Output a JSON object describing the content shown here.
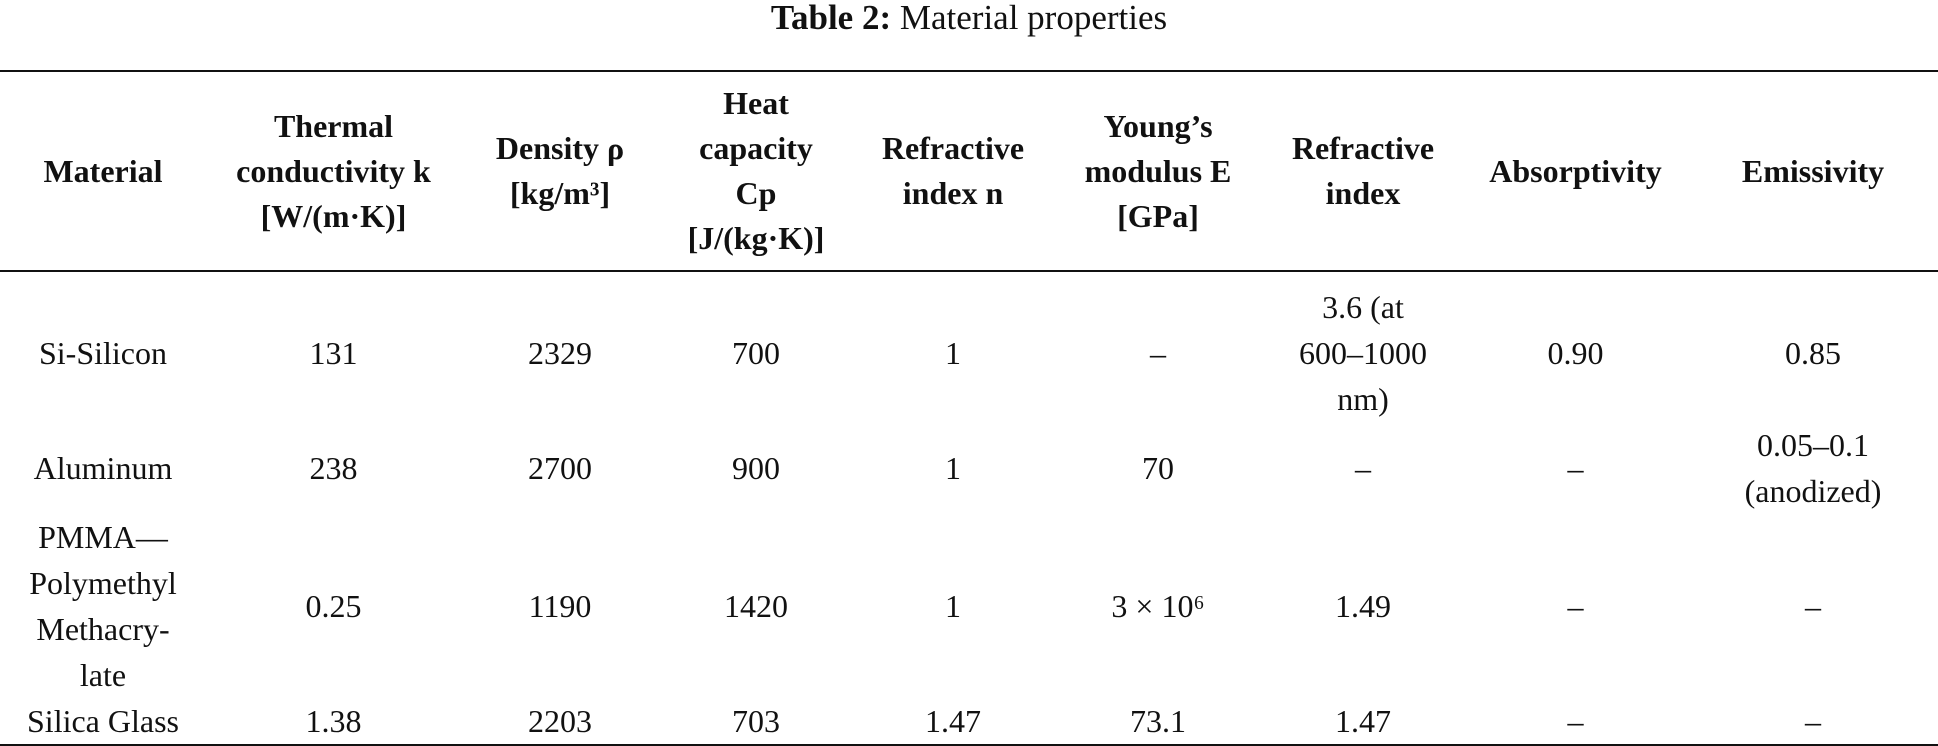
{
  "caption": {
    "label": "Table 2:",
    "text": " Material properties"
  },
  "table": {
    "headers": [
      {
        "lines": [
          "Material"
        ]
      },
      {
        "lines": [
          "Thermal",
          "conductivity k",
          "[W/(m·K)]"
        ]
      },
      {
        "lines": [
          "Density ρ",
          "[kg/m³]"
        ]
      },
      {
        "lines": [
          "Heat",
          "capacity",
          "Cp",
          "[J/(kg·K)]"
        ]
      },
      {
        "lines": [
          "Refractive",
          "index n"
        ]
      },
      {
        "lines": [
          "Young’s",
          "modulus E",
          "[GPa]"
        ]
      },
      {
        "lines": [
          "Refractive",
          "index"
        ]
      },
      {
        "lines": [
          "Absorptivity"
        ]
      },
      {
        "lines": [
          "Emissivity"
        ]
      }
    ],
    "rows": [
      {
        "cells": [
          {
            "lines": [
              "Si-Silicon"
            ]
          },
          {
            "lines": [
              "131"
            ]
          },
          {
            "lines": [
              "2329"
            ]
          },
          {
            "lines": [
              "700"
            ]
          },
          {
            "lines": [
              "1"
            ]
          },
          {
            "lines": [
              "–"
            ]
          },
          {
            "lines": [
              "3.6 (at",
              "600–1000",
              "nm)"
            ]
          },
          {
            "lines": [
              "0.90"
            ]
          },
          {
            "lines": [
              "0.85"
            ]
          }
        ]
      },
      {
        "cells": [
          {
            "lines": [
              "Aluminum"
            ]
          },
          {
            "lines": [
              "238"
            ]
          },
          {
            "lines": [
              "2700"
            ]
          },
          {
            "lines": [
              "900"
            ]
          },
          {
            "lines": [
              "1"
            ]
          },
          {
            "lines": [
              "70"
            ]
          },
          {
            "lines": [
              "–"
            ]
          },
          {
            "lines": [
              "–"
            ]
          },
          {
            "lines": [
              "0.05–0.1",
              "(anodized)"
            ]
          }
        ]
      },
      {
        "cells": [
          {
            "lines": [
              "PMMA—",
              "Polymethyl",
              "Methacry-",
              "late"
            ]
          },
          {
            "lines": [
              "0.25"
            ]
          },
          {
            "lines": [
              "1190"
            ]
          },
          {
            "lines": [
              "1420"
            ]
          },
          {
            "lines": [
              "1"
            ]
          },
          {
            "lines": [
              "3 × 10⁶"
            ]
          },
          {
            "lines": [
              "1.49"
            ]
          },
          {
            "lines": [
              "–"
            ]
          },
          {
            "lines": [
              "–"
            ]
          }
        ]
      },
      {
        "cells": [
          {
            "lines": [
              "Silica Glass"
            ]
          },
          {
            "lines": [
              "1.38"
            ]
          },
          {
            "lines": [
              "2203"
            ]
          },
          {
            "lines": [
              "703"
            ]
          },
          {
            "lines": [
              "1.47"
            ]
          },
          {
            "lines": [
              "73.1"
            ]
          },
          {
            "lines": [
              "1.47"
            ]
          },
          {
            "lines": [
              "–"
            ]
          },
          {
            "lines": [
              "–"
            ]
          }
        ]
      }
    ]
  }
}
